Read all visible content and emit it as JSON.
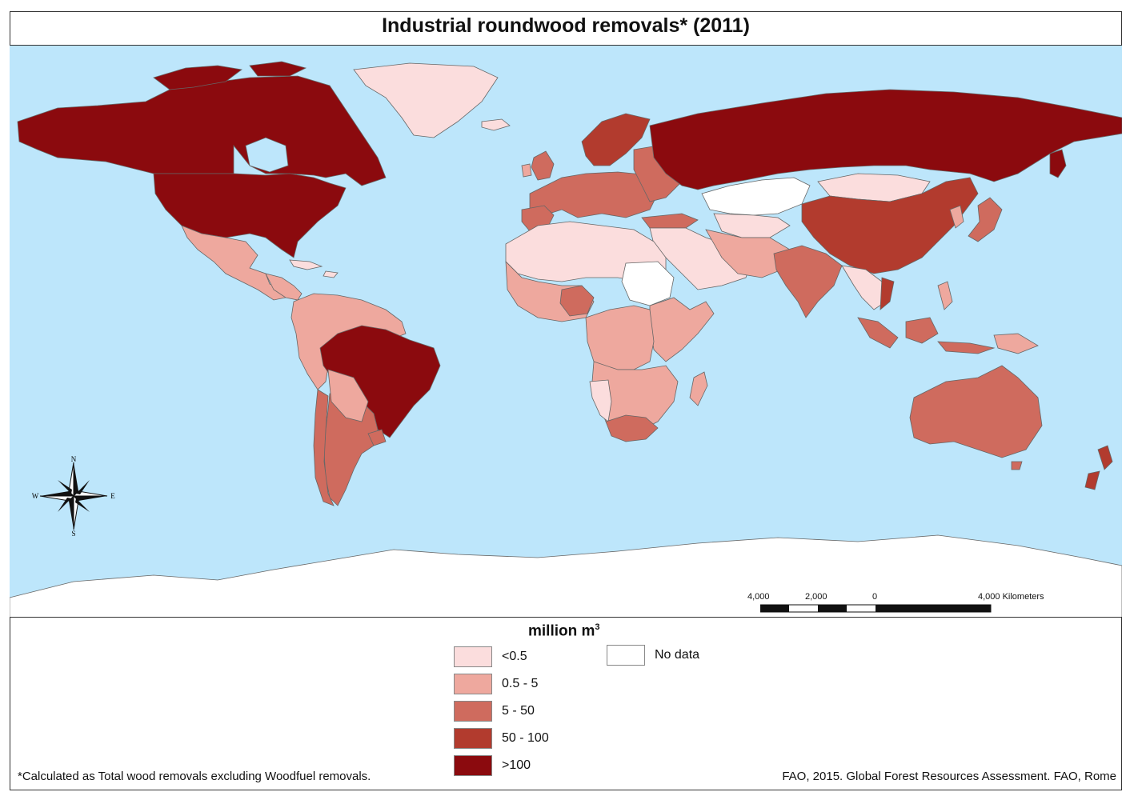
{
  "title": "Industrial roundwood removals* (2011)",
  "legend": {
    "title": "million m",
    "title_sup": "3",
    "classes": [
      {
        "label": "<0.5",
        "color": "#fbdddd"
      },
      {
        "label": "0.5 - 5",
        "color": "#eea89e"
      },
      {
        "label": "5 - 50",
        "color": "#cf6b5e"
      },
      {
        "label": "50 - 100",
        "color": "#b23b2e"
      },
      {
        "label": ">100",
        "color": "#8b0a0e"
      }
    ],
    "no_data": {
      "label": "No data",
      "color": "#ffffff"
    }
  },
  "scale_bar": {
    "labels": [
      "4,000",
      "2,000",
      "0",
      "4,000 Kilometers"
    ]
  },
  "compass": {
    "n": "N",
    "s": "S",
    "e": "E",
    "w": "W"
  },
  "footnote": "*Calculated as Total wood removals excluding Woodfuel removals.",
  "credit": "FAO, 2015. Global Forest Resources Assessment. FAO, Rome",
  "colors": {
    "ocean": "#bde6fb",
    "border": "#666666"
  }
}
